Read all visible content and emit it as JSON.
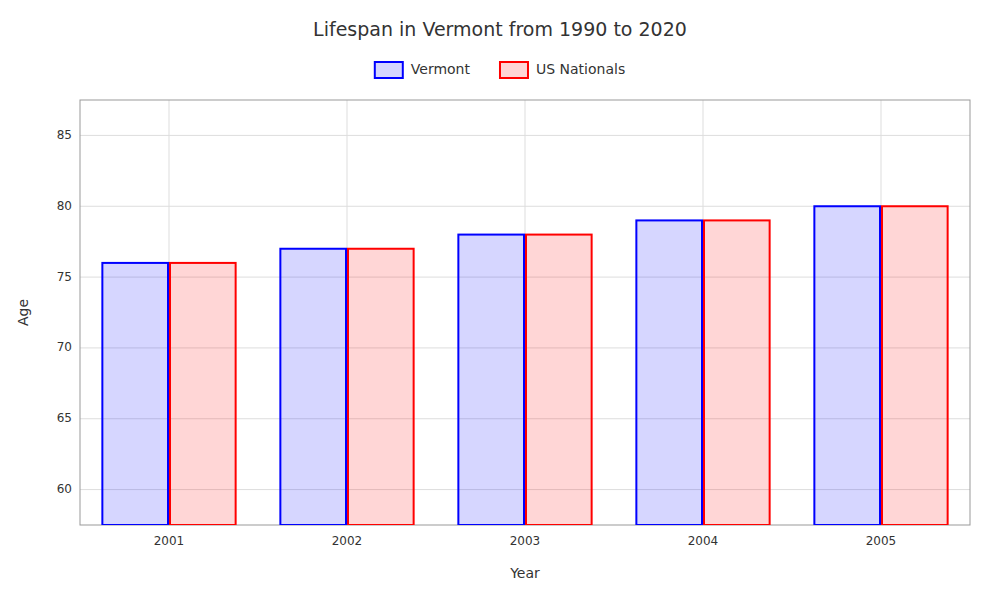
{
  "chart_data": {
    "type": "bar",
    "title": "Lifespan in Vermont from 1990 to 2020",
    "xlabel": "Year",
    "ylabel": "Age",
    "categories": [
      "2001",
      "2002",
      "2003",
      "2004",
      "2005"
    ],
    "series": [
      {
        "name": "Vermont",
        "color": "#0000ff",
        "values": [
          76,
          77,
          78,
          79,
          80
        ]
      },
      {
        "name": "US Nationals",
        "color": "#ff0000",
        "values": [
          76,
          77,
          78,
          79,
          80
        ]
      }
    ],
    "ylim": [
      57.5,
      87.5
    ],
    "yticks": [
      60,
      65,
      70,
      75,
      80,
      85
    ],
    "grid": true,
    "legend": "top"
  }
}
